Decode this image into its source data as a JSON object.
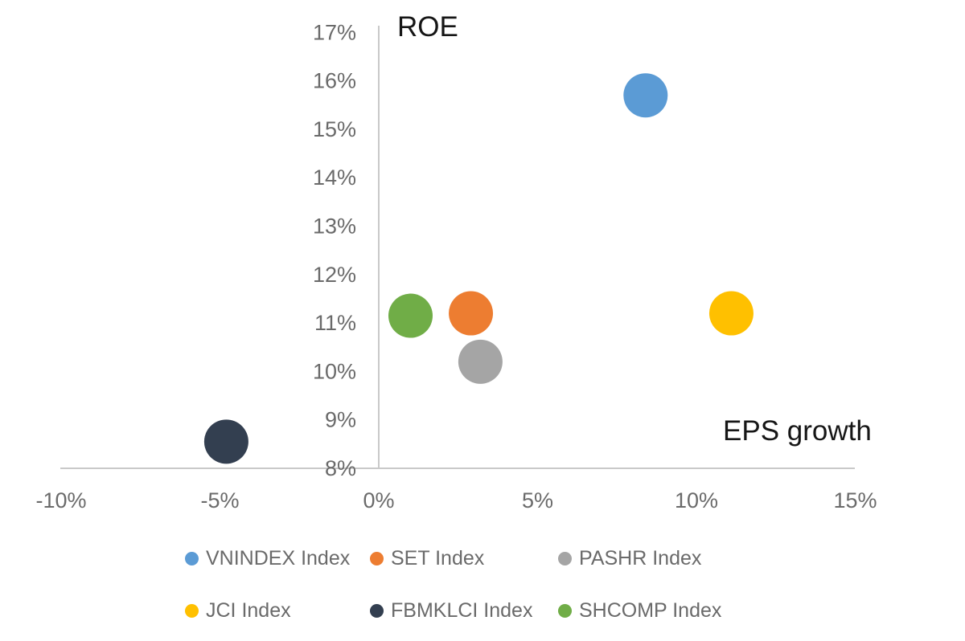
{
  "chart_data": {
    "type": "scatter",
    "title": "",
    "x_axis": {
      "label": "EPS growth",
      "min": -10,
      "max": 15,
      "ticks": [
        -10,
        -5,
        0,
        5,
        10,
        15
      ],
      "tick_suffix": "%"
    },
    "y_axis": {
      "label": "ROE",
      "min": 8,
      "max": 17,
      "ticks": [
        8,
        9,
        10,
        11,
        12,
        13,
        14,
        15,
        16,
        17
      ],
      "tick_suffix": "%"
    },
    "grid": "off",
    "series": [
      {
        "name": "VNINDEX Index",
        "color": "#5B9BD5",
        "x": 8.4,
        "y": 15.7
      },
      {
        "name": "SET Index",
        "color": "#ED7D31",
        "x": 2.9,
        "y": 11.2
      },
      {
        "name": "PASHR Index",
        "color": "#A5A5A5",
        "x": 3.2,
        "y": 10.2
      },
      {
        "name": "JCI Index",
        "color": "#FFC000",
        "x": 11.1,
        "y": 11.2
      },
      {
        "name": "FBMKLCI Index",
        "color": "#333F50",
        "x": -4.8,
        "y": 8.55
      },
      {
        "name": "SHCOMP Index",
        "color": "#70AD47",
        "x": 1.0,
        "y": 11.15
      }
    ],
    "legend": {
      "position": "bottom",
      "rows": [
        [
          "VNINDEX Index",
          "SET Index",
          "PASHR Index"
        ],
        [
          "JCI Index",
          "FBMKLCI Index",
          "SHCOMP Index"
        ]
      ]
    },
    "axis_color": "#C9C9C9",
    "tick_label_color": "#6a6a6a",
    "legend_label_color": "#6a6a6a",
    "axis_title_color": "#161616"
  }
}
